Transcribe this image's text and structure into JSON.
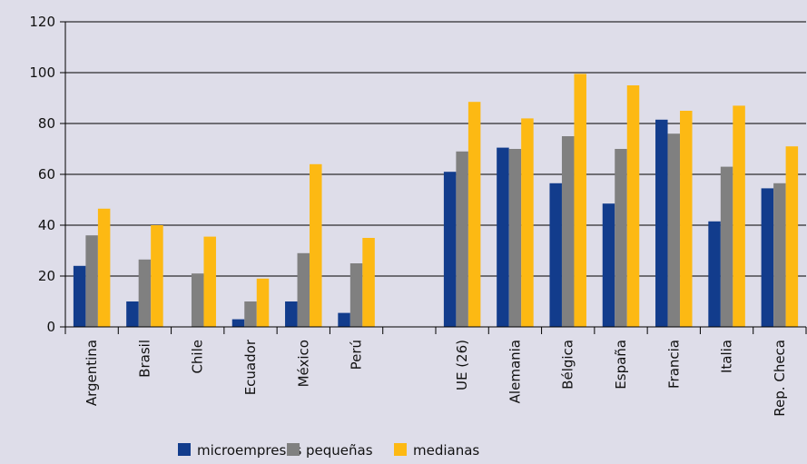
{
  "chart_data": {
    "type": "bar",
    "categories": [
      "Argentina",
      "Brasil",
      "Chile",
      "Ecuador",
      "México",
      "Perú",
      "",
      "UE (26)",
      "Alemania",
      "Bélgica",
      "España",
      "Francia",
      "Italia",
      "Rep. Checa"
    ],
    "series": [
      {
        "name": "microempresas",
        "color": "#123c8c",
        "values": [
          24,
          10,
          0,
          3,
          10,
          5.5,
          null,
          61,
          70.5,
          56.5,
          48.5,
          81.5,
          41.5,
          54.5
        ]
      },
      {
        "name": "pequeñas",
        "color": "#808080",
        "values": [
          36,
          26.5,
          21,
          10,
          29,
          25,
          null,
          69,
          70,
          75,
          70,
          76,
          63,
          56.5
        ]
      },
      {
        "name": "medianas",
        "color": "#fdb913",
        "values": [
          46.5,
          40,
          35.5,
          19,
          64,
          35,
          null,
          88.5,
          82,
          99.5,
          95,
          85,
          87,
          71
        ]
      }
    ],
    "yticks": [
      0,
      20,
      40,
      60,
      80,
      100,
      120
    ],
    "ylim": [
      0,
      120
    ],
    "grid": true,
    "legend": "bottom"
  }
}
